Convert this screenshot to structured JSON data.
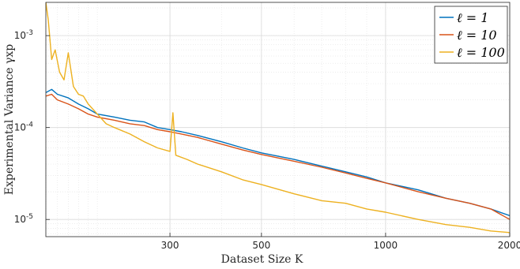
{
  "chart_data": {
    "type": "line",
    "xlabel": "Dataset Size K",
    "ylabel": "Experimental Variance γxp",
    "xscale": "log",
    "yscale": "log",
    "xlim": [
      150,
      2000
    ],
    "ylim": [
      6.5e-06,
      0.0023
    ],
    "xticks": [
      {
        "value": 300,
        "label": "300"
      },
      {
        "value": 500,
        "label": "500"
      },
      {
        "value": 1000,
        "label": "1000"
      },
      {
        "value": 2000,
        "label": "2000"
      }
    ],
    "yticks": [
      {
        "value": 1e-05,
        "base": "10",
        "exp": "-5"
      },
      {
        "value": 0.0001,
        "base": "10",
        "exp": "-4"
      },
      {
        "value": 0.001,
        "base": "10",
        "exp": "-3"
      }
    ],
    "grid": true,
    "legend_position": "top-right",
    "series": [
      {
        "name": "ℓ = 1",
        "color": "#0072BD",
        "x": [
          150,
          155,
          160,
          170,
          180,
          190,
          200,
          220,
          240,
          260,
          280,
          300,
          320,
          350,
          400,
          450,
          500,
          600,
          700,
          800,
          900,
          1000,
          1200,
          1400,
          1600,
          1800,
          2000
        ],
        "y": [
          0.00024,
          0.00026,
          0.00023,
          0.00021,
          0.00018,
          0.00016,
          0.00014,
          0.00013,
          0.00012,
          0.000115,
          0.0001,
          9.5e-05,
          9e-05,
          8.2e-05,
          7e-05,
          6e-05,
          5.3e-05,
          4.5e-05,
          3.8e-05,
          3.3e-05,
          2.9e-05,
          2.5e-05,
          2.1e-05,
          1.7e-05,
          1.5e-05,
          1.3e-05,
          1.1e-05
        ]
      },
      {
        "name": "ℓ = 10",
        "color": "#D95319",
        "x": [
          150,
          155,
          160,
          170,
          180,
          190,
          200,
          220,
          240,
          260,
          280,
          300,
          320,
          350,
          400,
          450,
          500,
          600,
          700,
          800,
          900,
          1000,
          1200,
          1400,
          1600,
          1800,
          2000
        ],
        "y": [
          0.00022,
          0.00023,
          0.0002,
          0.00018,
          0.00016,
          0.00014,
          0.00013,
          0.00012,
          0.00011,
          0.000105,
          9.5e-05,
          9e-05,
          8.5e-05,
          7.8e-05,
          6.6e-05,
          5.7e-05,
          5.1e-05,
          4.3e-05,
          3.7e-05,
          3.2e-05,
          2.8e-05,
          2.5e-05,
          2e-05,
          1.7e-05,
          1.5e-05,
          1.3e-05,
          1e-05
        ]
      },
      {
        "name": "ℓ = 100",
        "color": "#EDB120",
        "x": [
          150,
          152,
          155,
          158,
          162,
          166,
          170,
          175,
          180,
          185,
          190,
          200,
          210,
          220,
          240,
          260,
          280,
          300,
          305,
          310,
          330,
          350,
          400,
          450,
          500,
          600,
          700,
          800,
          900,
          1000,
          1200,
          1400,
          1600,
          1800,
          2000
        ],
        "y": [
          0.0023,
          0.0015,
          0.00055,
          0.0007,
          0.0004,
          0.00033,
          0.00065,
          0.00028,
          0.00023,
          0.00022,
          0.00018,
          0.00014,
          0.00011,
          0.0001,
          8.5e-05,
          7e-05,
          6e-05,
          5.5e-05,
          0.000145,
          5e-05,
          4.5e-05,
          4e-05,
          3.3e-05,
          2.7e-05,
          2.4e-05,
          1.9e-05,
          1.6e-05,
          1.5e-05,
          1.3e-05,
          1.2e-05,
          1e-05,
          8.8e-06,
          8.2e-06,
          7.5e-06,
          7.2e-06
        ]
      }
    ]
  }
}
